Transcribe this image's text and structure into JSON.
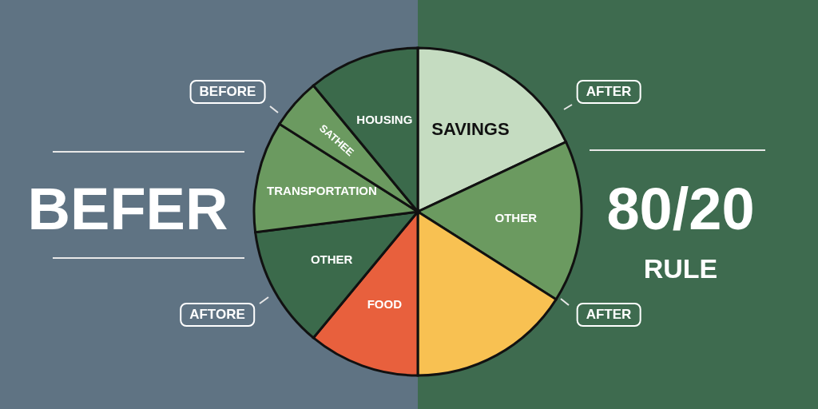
{
  "chart_data": {
    "type": "pie",
    "categories": [
      "SAVINGS",
      "OTHER",
      null,
      "FOOD",
      "OTHER",
      "TRANSPORTATION",
      "SATHEE",
      "HOUSING"
    ],
    "values": [
      18,
      16,
      16,
      11,
      12,
      11,
      5,
      11
    ],
    "colors": [
      "#c5dcc1",
      "#6b9a60",
      "#f8c152",
      "#e8603d",
      "#3b6a4b",
      "#6b9a60",
      "#6b9a60",
      "#3b6a4b"
    ],
    "annotations": [
      "BEFORE",
      "AFTER",
      "AFTER",
      "AFTORE",
      "BEFER",
      "80/20",
      "RULE"
    ]
  }
}
